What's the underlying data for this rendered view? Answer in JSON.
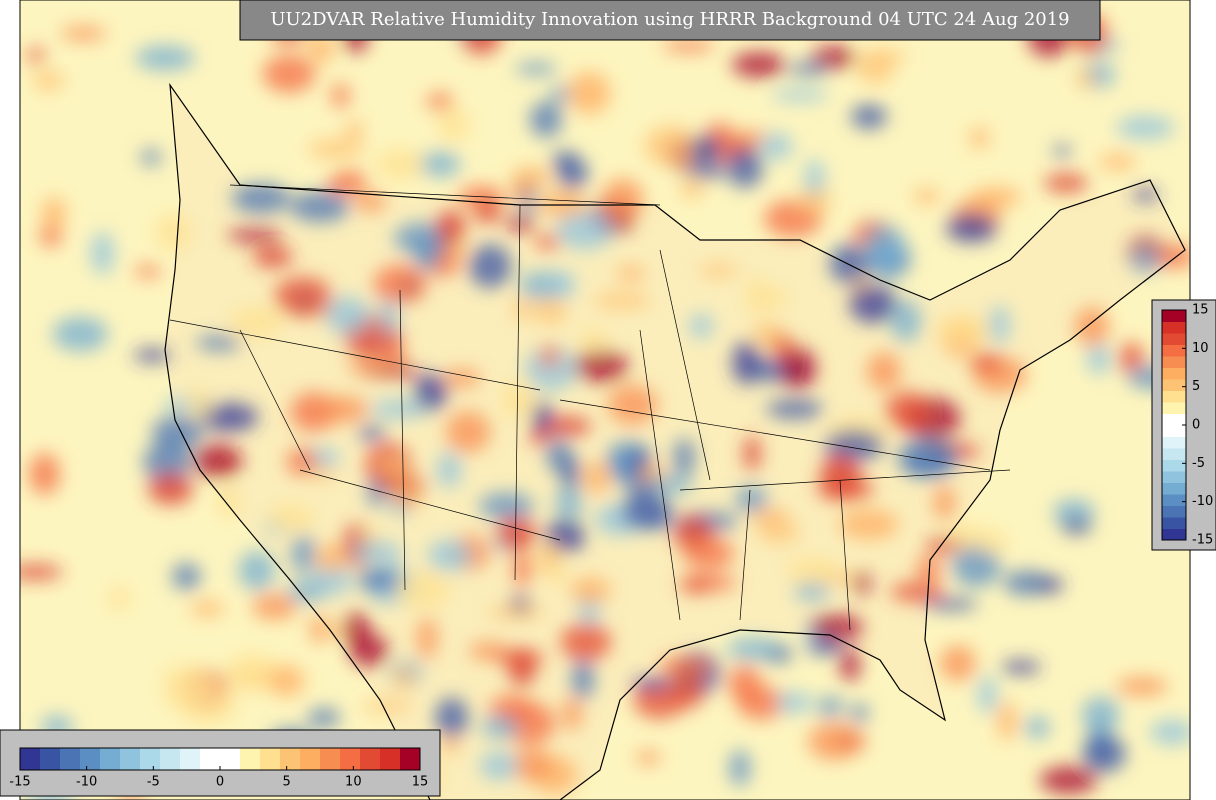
{
  "map": {
    "title": "UU2DVAR Relative Humidity Innovation using HRRR Background 04 UTC 24 Aug 2019"
  },
  "colorbar": {
    "lim": [
      -15,
      15
    ],
    "ticks": [
      -15,
      -10,
      -5,
      0,
      5,
      10,
      15
    ],
    "colors": [
      "#313695",
      "#3a54a4",
      "#4a74b4",
      "#5b8fc3",
      "#74add1",
      "#90c3dd",
      "#abd9e9",
      "#c6e6f0",
      "#e0f3f8",
      "#ffffff",
      "#ffffff",
      "#fff3b0",
      "#fee090",
      "#fdc374",
      "#fdae61",
      "#f88d52",
      "#f46d43",
      "#e34a33",
      "#d73027",
      "#a50026"
    ]
  }
}
